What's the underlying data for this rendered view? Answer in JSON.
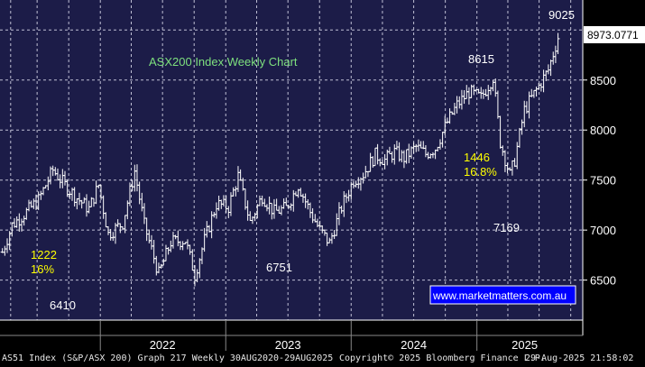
{
  "chart_data": {
    "type": "line",
    "title": "ASX200 Index Weekly Chart",
    "y_ticks": [
      6500,
      7000,
      7500,
      8000,
      8500
    ],
    "y_range": [
      6100,
      9300
    ],
    "x_ticks": [
      "2022",
      "2023",
      "2024",
      "2025"
    ],
    "x_range": [
      "2021-03-15",
      "2025-11-05"
    ],
    "last_price_label": "8973.0771",
    "watermark": "www.marketmatters.com.au",
    "grid": true,
    "series": [
      {
        "points": [
          [
            "2021-03-22",
            6780
          ],
          [
            "2021-04-19",
            7050
          ],
          [
            "2021-05-31",
            7180
          ],
          [
            "2021-07-05",
            7300
          ],
          [
            "2021-08-16",
            7600
          ],
          [
            "2021-09-20",
            7450
          ],
          [
            "2021-10-25",
            7320
          ],
          [
            "2021-11-29",
            7210
          ],
          [
            "2021-12-27",
            7450
          ],
          [
            "2022-01-24",
            6960
          ],
          [
            "2022-03-07",
            7070
          ],
          [
            "2022-04-11",
            7590
          ],
          [
            "2022-05-09",
            7050
          ],
          [
            "2022-06-20",
            6560
          ],
          [
            "2022-07-25",
            6880
          ],
          [
            "2022-09-05",
            6900
          ],
          [
            "2022-10-03",
            6550
          ],
          [
            "2022-10-31",
            6900
          ],
          [
            "2022-12-05",
            7260
          ],
          [
            "2023-01-09",
            7230
          ],
          [
            "2023-02-06",
            7540
          ],
          [
            "2023-03-13",
            7080
          ],
          [
            "2023-04-17",
            7340
          ],
          [
            "2023-05-22",
            7180
          ],
          [
            "2023-06-26",
            7220
          ],
          [
            "2023-07-31",
            7450
          ],
          [
            "2023-09-04",
            7180
          ],
          [
            "2023-10-02",
            7000
          ],
          [
            "2023-10-30",
            6870
          ],
          [
            "2023-12-04",
            7230
          ],
          [
            "2024-01-08",
            7500
          ],
          [
            "2024-02-05",
            7560
          ],
          [
            "2024-03-11",
            7750
          ],
          [
            "2024-04-08",
            7700
          ],
          [
            "2024-05-06",
            7780
          ],
          [
            "2024-06-03",
            7720
          ],
          [
            "2024-07-08",
            7830
          ],
          [
            "2024-08-05",
            7760
          ],
          [
            "2024-09-02",
            7820
          ],
          [
            "2024-10-07",
            8080
          ],
          [
            "2024-11-04",
            8250
          ],
          [
            "2024-12-09",
            8380
          ],
          [
            "2025-01-13",
            8320
          ],
          [
            "2025-02-17",
            8530
          ],
          [
            "2025-03-10",
            7880
          ],
          [
            "2025-04-07",
            7550
          ],
          [
            "2025-04-21",
            7700
          ],
          [
            "2025-05-19",
            8200
          ],
          [
            "2025-06-23",
            8400
          ],
          [
            "2025-07-28",
            8600
          ],
          [
            "2025-08-29",
            8973
          ]
        ]
      }
    ],
    "annotations": [
      {
        "text": "9025",
        "color": "#ffffff"
      },
      {
        "text": "8615",
        "color": "#ffffff"
      },
      {
        "text": "1446",
        "color": "#ffff00"
      },
      {
        "text": "16.8%",
        "color": "#ffff00"
      },
      {
        "text": "7169",
        "color": "#ffffff"
      },
      {
        "text": "1222",
        "color": "#ffff00"
      },
      {
        "text": "16%",
        "color": "#ffff00"
      },
      {
        "text": "6751",
        "color": "#ffffff"
      },
      {
        "text": "6410",
        "color": "#ffffff"
      }
    ],
    "colors": {
      "plot_background": "#1c1c48",
      "grid": "#bfbfd4",
      "price_bars": "#ffffff",
      "title": "#7ee07e",
      "axis_panel": "#000000",
      "watermark_border": "#ffffff",
      "watermark_bg": "#0000ff"
    }
  },
  "footer": {
    "left": "AS51 Index (S&P/ASX 200) Graph 217  Weekly 30AUG2020-29AUG2025",
    "middle": "Copyright© 2025 Bloomberg Finance L.P.",
    "right": "29-Aug-2025 21:58:02"
  }
}
